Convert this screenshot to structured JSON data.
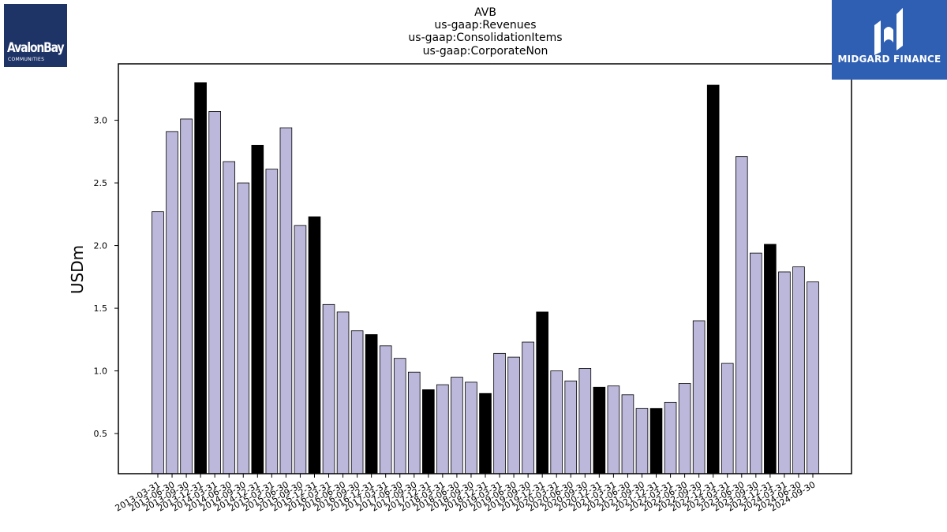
{
  "chart_data": {
    "type": "bar",
    "title_lines": [
      "AVB",
      "us-gaap:Revenues",
      "us-gaap:ConsolidationItems",
      "us-gaap:CorporateNon"
    ],
    "ylabel": "USDm",
    "xlabel": "",
    "ylim": [
      0.18,
      3.45
    ],
    "yticks": [
      "0.5",
      "1.0",
      "1.5",
      "2.0",
      "2.5",
      "3.0"
    ],
    "ytick_values": [
      0.5,
      1.0,
      1.5,
      2.0,
      2.5,
      3.0
    ],
    "grid": false,
    "colors": {
      "regular": "#bcb8db",
      "highlight": "#000000",
      "edge": "#000000"
    },
    "categories": [
      "2013-03-31",
      "2013-06-30",
      "2013-09-30",
      "2013-12-31",
      "2014-03-31",
      "2014-06-30",
      "2014-09-30",
      "2014-12-31",
      "2015-03-31",
      "2015-06-30",
      "2015-09-30",
      "2015-12-31",
      "2016-03-31",
      "2016-06-30",
      "2016-09-30",
      "2016-12-31",
      "2017-03-31",
      "2017-06-30",
      "2017-09-30",
      "2017-12-31",
      "2018-03-31",
      "2018-06-30",
      "2018-09-30",
      "2018-12-31",
      "2019-03-31",
      "2019-06-30",
      "2019-09-30",
      "2019-12-31",
      "2020-03-31",
      "2020-06-30",
      "2020-09-30",
      "2020-12-31",
      "2021-03-31",
      "2021-06-30",
      "2021-09-30",
      "2021-12-31",
      "2022-03-31",
      "2022-06-30",
      "2022-09-30",
      "2022-12-31",
      "2023-03-31",
      "2023-06-30",
      "2023-09-30",
      "2023-12-31",
      "2024-03-31",
      "2024-06-30",
      "2024-09-30"
    ],
    "values": [
      2.27,
      2.91,
      3.01,
      3.3,
      3.07,
      2.67,
      2.5,
      2.8,
      2.61,
      2.94,
      2.16,
      2.23,
      1.53,
      1.47,
      1.32,
      1.29,
      1.2,
      1.1,
      0.99,
      0.85,
      0.89,
      0.95,
      0.91,
      0.82,
      1.14,
      1.11,
      1.23,
      1.47,
      1.0,
      0.92,
      1.02,
      0.87,
      0.88,
      0.81,
      0.7,
      0.7,
      0.75,
      0.9,
      1.4,
      3.28,
      1.06,
      2.71,
      1.94,
      2.01,
      1.79,
      1.83,
      1.71
    ],
    "highlight": [
      false,
      false,
      false,
      true,
      false,
      false,
      false,
      true,
      false,
      false,
      false,
      true,
      false,
      false,
      false,
      true,
      false,
      false,
      false,
      true,
      false,
      false,
      false,
      true,
      false,
      false,
      false,
      true,
      false,
      false,
      false,
      true,
      false,
      false,
      false,
      true,
      false,
      false,
      false,
      true,
      false,
      false,
      false,
      true,
      false,
      false,
      false
    ]
  },
  "logos": {
    "left": {
      "brand": "AvalonBay",
      "sub": "COMMUNITIES",
      "icon": "avalonbay-logo",
      "color": "#1e3366"
    },
    "right": {
      "name": "MIDGARD FINANCE",
      "icon": "midgard-logo",
      "color": "#2f5fb3"
    }
  }
}
